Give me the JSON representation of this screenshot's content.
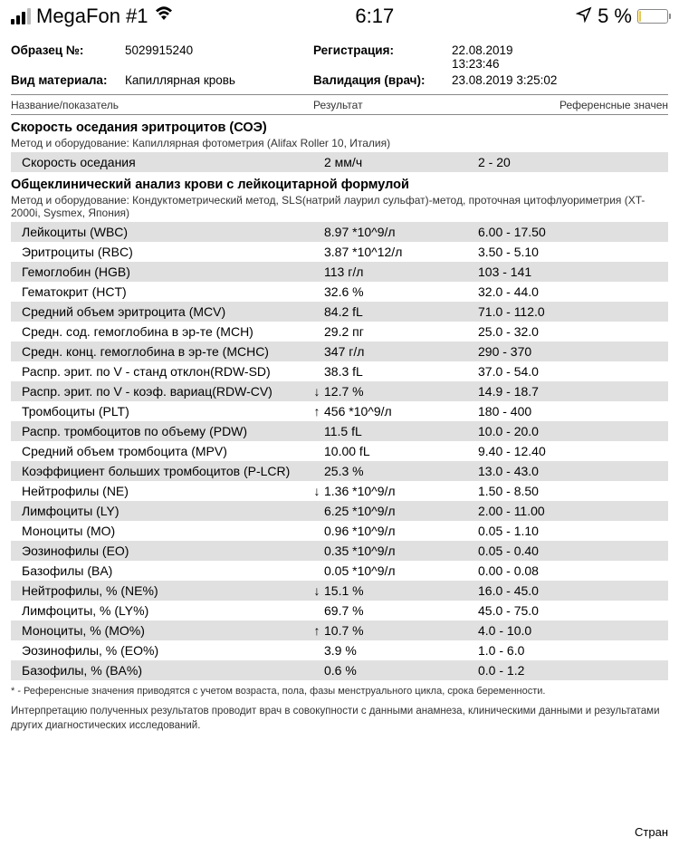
{
  "status": {
    "carrier": "MegaFon #1",
    "time": "6:17",
    "battery_pct": "5 %",
    "battery_fill_pct": 5
  },
  "header": {
    "sample_lbl": "Образец №:",
    "sample_val": "5029915240",
    "material_lbl": "Вид материала:",
    "material_val": "Капиллярная кровь",
    "reg_lbl": "Регистрация:",
    "reg_val": "22.08.2019  13:23:46",
    "valid_lbl": "Валидация (врач):",
    "valid_val": "23.08.2019  3:25:02"
  },
  "cols": {
    "name": "Название/показатель",
    "result": "Результат",
    "ref": "Референсные значен"
  },
  "sections": [
    {
      "title": "Скорость оседания эритроцитов (СОЭ)",
      "method_lbl": "Метод и оборудование:",
      "method_val": "Капиллярная фотометрия (Alifax Roller 10, Италия)",
      "rows": [
        {
          "name": "Скорость оседания",
          "arrow": "",
          "result": "2 мм/ч",
          "ref": "2 - 20"
        }
      ]
    },
    {
      "title": "Общеклинический анализ крови с лейкоцитарной формулой",
      "method_lbl": "Метод и оборудование:",
      "method_val": "Кондуктометрический метод, SLS(натрий лаурил сульфат)-метод, проточная цитофлуориметрия (XT-2000i, Sysmex, Япония)",
      "rows": [
        {
          "name": "Лейкоциты (WBC)",
          "arrow": "",
          "result": "8.97 *10^9/л",
          "ref": "6.00 - 17.50"
        },
        {
          "name": "Эритроциты (RBC)",
          "arrow": "",
          "result": "3.87 *10^12/л",
          "ref": "3.50 - 5.10"
        },
        {
          "name": "Гемоглобин (HGB)",
          "arrow": "",
          "result": "113 г/л",
          "ref": "103 - 141"
        },
        {
          "name": "Гематокрит (HCT)",
          "arrow": "",
          "result": "32.6 %",
          "ref": "32.0 - 44.0"
        },
        {
          "name": "Средний объем эритроцита (MCV)",
          "arrow": "",
          "result": "84.2 fL",
          "ref": "71.0 - 112.0"
        },
        {
          "name": "Средн. сод. гемоглобина в эр-те (MCH)",
          "arrow": "",
          "result": "29.2 пг",
          "ref": "25.0 - 32.0"
        },
        {
          "name": "Средн. конц. гемоглобина в эр-те (MCHC)",
          "arrow": "",
          "result": "347 г/л",
          "ref": "290 - 370"
        },
        {
          "name": "Распр. эрит. по V - станд отклон(RDW-SD)",
          "arrow": "",
          "result": "38.3 fL",
          "ref": "37.0 - 54.0"
        },
        {
          "name": "Распр. эрит. по V - коэф. вариац(RDW-CV)",
          "arrow": "↓",
          "result": "12.7 %",
          "ref": "14.9 - 18.7"
        },
        {
          "name": "Тромбоциты (PLT)",
          "arrow": "↑",
          "result": "456 *10^9/л",
          "ref": "180 - 400"
        },
        {
          "name": "Распр. тромбоцитов по объему (PDW)",
          "arrow": "",
          "result": "11.5 fL",
          "ref": "10.0 - 20.0"
        },
        {
          "name": "Средний объем тромбоцита (MPV)",
          "arrow": "",
          "result": "10.00 fL",
          "ref": "9.40 - 12.40"
        },
        {
          "name": "Коэффициент больших тромбоцитов (P-LCR)",
          "arrow": "",
          "result": "25.3 %",
          "ref": "13.0 - 43.0"
        },
        {
          "name": "Нейтрофилы (NE)",
          "arrow": "↓",
          "result": "1.36 *10^9/л",
          "ref": "1.50 - 8.50"
        },
        {
          "name": "Лимфоциты (LY)",
          "arrow": "",
          "result": "6.25 *10^9/л",
          "ref": "2.00 - 11.00"
        },
        {
          "name": "Моноциты (MO)",
          "arrow": "",
          "result": "0.96 *10^9/л",
          "ref": "0.05 - 1.10"
        },
        {
          "name": "Эозинофилы (EO)",
          "arrow": "",
          "result": "0.35 *10^9/л",
          "ref": "0.05 - 0.40"
        },
        {
          "name": "Базофилы (BA)",
          "arrow": "",
          "result": "0.05 *10^9/л",
          "ref": "0.00 - 0.08"
        },
        {
          "name": "Нейтрофилы, % (NE%)",
          "arrow": "↓",
          "result": "15.1 %",
          "ref": "16.0 - 45.0"
        },
        {
          "name": "Лимфоциты, % (LY%)",
          "arrow": "",
          "result": "69.7 %",
          "ref": "45.0 - 75.0"
        },
        {
          "name": "Моноциты, % (MO%)",
          "arrow": "↑",
          "result": "10.7 %",
          "ref": "4.0 - 10.0"
        },
        {
          "name": "Эозинофилы, % (EO%)",
          "arrow": "",
          "result": "3.9 %",
          "ref": "1.0 - 6.0"
        },
        {
          "name": "Базофилы, % (BA%)",
          "arrow": "",
          "result": "0.6 %",
          "ref": "0.0 - 1.2"
        }
      ]
    }
  ],
  "footnote": "* - Референсные значения приводятся с учетом возраста, пола, фазы менструального цикла, срока беременности.",
  "interp": "Интерпретацию полученных результатов проводит врач в совокупности с данными анамнеза, клиническими данными и результатами других диагностических исследований.",
  "page_foot": "Стран",
  "colors": {
    "row_alt": "#e0e0e0",
    "text": "#000000",
    "muted": "#333333",
    "border": "#888888"
  }
}
